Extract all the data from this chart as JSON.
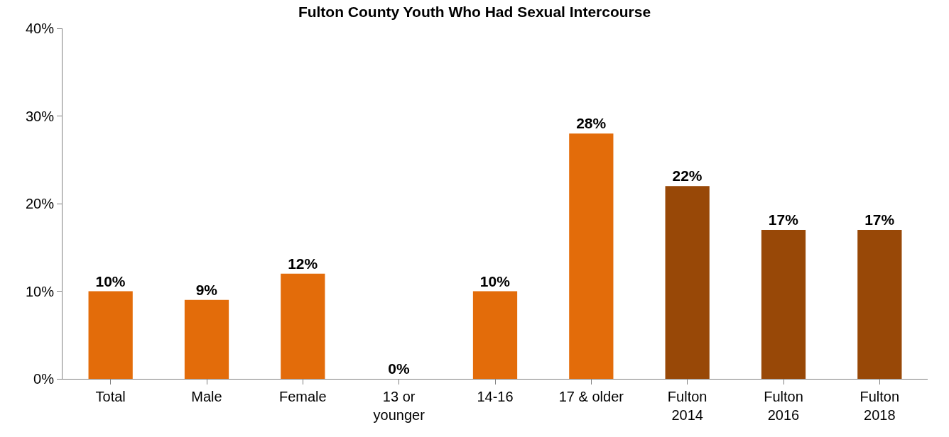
{
  "chart_data": {
    "type": "bar",
    "title": "Fulton County Youth Who Had Sexual Intercourse",
    "categories": [
      "Total",
      "Male",
      "Female",
      "13 or younger",
      "14-16",
      "17 & older",
      "Fulton 2014",
      "Fulton 2016",
      "Fulton 2018"
    ],
    "values": [
      10,
      9,
      12,
      0,
      10,
      28,
      22,
      17,
      17
    ],
    "colors": [
      "#e36c0a",
      "#e36c0a",
      "#e36c0a",
      "#e36c0a",
      "#e36c0a",
      "#e36c0a",
      "#984807",
      "#984807",
      "#984807"
    ],
    "value_labels": [
      "10%",
      "9%",
      "12%",
      "0%",
      "10%",
      "28%",
      "22%",
      "17%",
      "17%"
    ],
    "ylim": [
      0,
      40
    ],
    "yticks": [
      {
        "value": 0,
        "label": "0%"
      },
      {
        "value": 10,
        "label": "10%"
      },
      {
        "value": 20,
        "label": "20%"
      },
      {
        "value": 30,
        "label": "30%"
      },
      {
        "value": 40,
        "label": "40%"
      }
    ]
  }
}
